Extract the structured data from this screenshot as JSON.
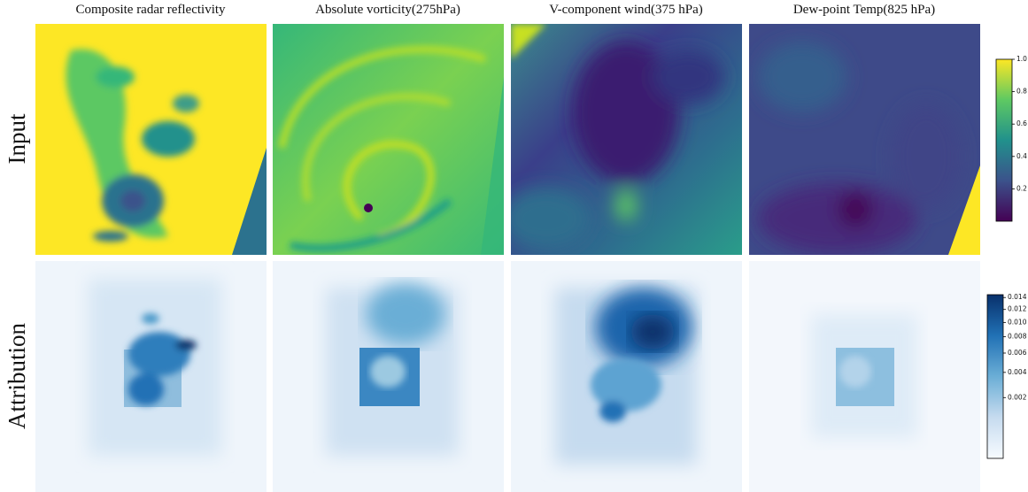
{
  "columns": [
    "Composite radar reflectivity",
    "Absolute vorticity(275hPa)",
    "V-component wind(375 hPa)",
    "Dew-point Temp(825 hPa)"
  ],
  "rows": [
    "Input",
    "Attribution"
  ],
  "colorbars": [
    {
      "colormap": "viridis",
      "lim": [
        0,
        1
      ],
      "ticks": [
        0.2,
        0.4,
        0.6,
        0.8,
        {
          "value": 1.0,
          "label": "1.0"
        }
      ]
    },
    {
      "colormap": "Blues",
      "scale": "sqrt",
      "lim": [
        0,
        0.0145
      ],
      "ticks": [
        0.002,
        0.004,
        0.006,
        0.008,
        {
          "value": 0.01,
          "label": "0.010"
        },
        0.012,
        0.014
      ]
    }
  ]
}
